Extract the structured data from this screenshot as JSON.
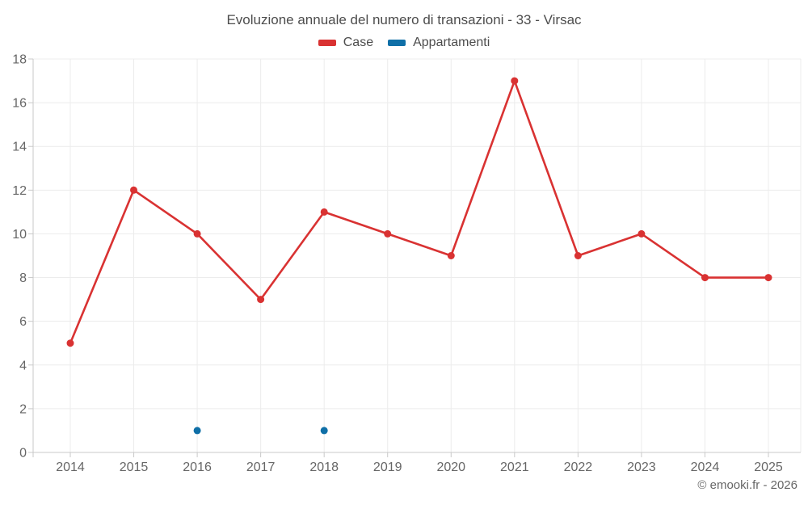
{
  "title": "Evoluzione annuale del numero di transazioni - 33 - Virsac",
  "legend": {
    "items": [
      {
        "label": "Case",
        "color": "#d93232"
      },
      {
        "label": "Appartamenti",
        "color": "#0f6fa7"
      }
    ]
  },
  "footer": {
    "credit": "© emooki.fr - 2026"
  },
  "colors": {
    "grid": "#ececec",
    "axis": "#c9c9c9",
    "tick_label": "#666666",
    "title_text": "#4d4d4d",
    "background": "#ffffff"
  },
  "chart_data": {
    "type": "line",
    "title": "Evoluzione annuale del numero di transazioni - 33 - Virsac",
    "categories": [
      "2014",
      "2015",
      "2016",
      "2017",
      "2018",
      "2019",
      "2020",
      "2021",
      "2022",
      "2023",
      "2024",
      "2025"
    ],
    "series": [
      {
        "name": "Case",
        "color": "#d93232",
        "show_line": true,
        "values": [
          5,
          12,
          10,
          7,
          11,
          10,
          9,
          17,
          9,
          10,
          8,
          8
        ]
      },
      {
        "name": "Appartamenti",
        "color": "#0f6fa7",
        "show_line": false,
        "values": [
          null,
          null,
          1,
          null,
          1,
          null,
          null,
          null,
          null,
          null,
          null,
          null
        ]
      }
    ],
    "xlabel": "",
    "ylabel": "",
    "ylim": [
      0,
      18
    ],
    "ytick_step": 2,
    "grid": true,
    "legend_position": "top"
  }
}
